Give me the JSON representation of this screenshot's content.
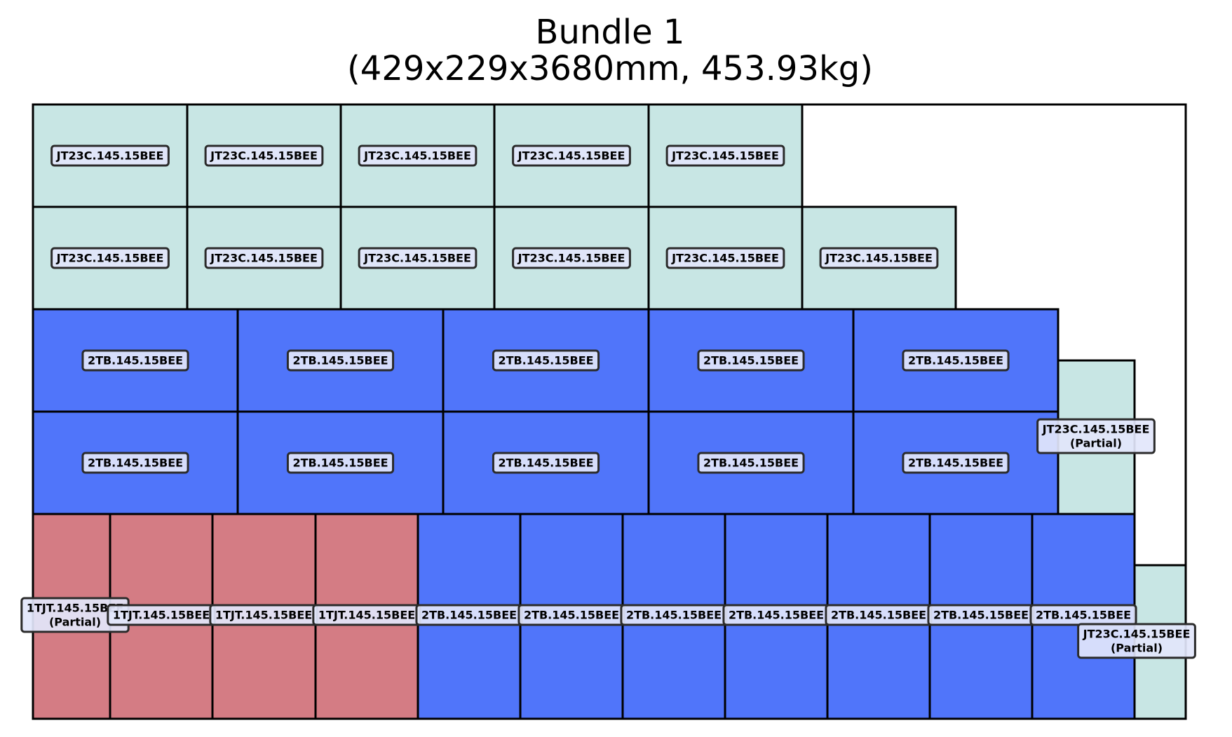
{
  "title": {
    "line1": "Bundle 1",
    "line2": "(429x229x3680mm, 453.93kg)"
  },
  "legend_colors": {
    "JT23C.145.15BEE": "#c8e6e4",
    "2TB.145.15BEE": "#5075fa",
    "1TJT.145.15BEE": "#d47c84"
  },
  "label_box": {
    "fill": "#e2e6fb",
    "stroke": "#2b2b2b"
  },
  "rows": [
    {
      "name": "row-top",
      "pieces": [
        {
          "label": "JT23C.145.15BEE"
        },
        {
          "label": "JT23C.145.15BEE"
        },
        {
          "label": "JT23C.145.15BEE"
        },
        {
          "label": "JT23C.145.15BEE"
        },
        {
          "label": "JT23C.145.15BEE"
        }
      ]
    },
    {
      "name": "row-2",
      "pieces": [
        {
          "label": "JT23C.145.15BEE"
        },
        {
          "label": "JT23C.145.15BEE"
        },
        {
          "label": "JT23C.145.15BEE"
        },
        {
          "label": "JT23C.145.15BEE"
        },
        {
          "label": "JT23C.145.15BEE"
        },
        {
          "label": "JT23C.145.15BEE"
        }
      ]
    },
    {
      "name": "row-3",
      "pieces": [
        {
          "label": "2TB.145.15BEE"
        },
        {
          "label": "2TB.145.15BEE"
        },
        {
          "label": "2TB.145.15BEE"
        },
        {
          "label": "2TB.145.15BEE"
        },
        {
          "label": "2TB.145.15BEE"
        }
      ]
    },
    {
      "name": "row-4",
      "pieces": [
        {
          "label": "2TB.145.15BEE"
        },
        {
          "label": "2TB.145.15BEE"
        },
        {
          "label": "2TB.145.15BEE"
        },
        {
          "label": "2TB.145.15BEE"
        },
        {
          "label": "2TB.145.15BEE"
        }
      ]
    },
    {
      "name": "row-bottom",
      "pieces": [
        {
          "label": "1TJT.145.15BEE",
          "note": "(Partial)"
        },
        {
          "label": "1TJT.145.15BEE"
        },
        {
          "label": "1TJT.145.15BEE"
        },
        {
          "label": "1TJT.145.15BEE"
        },
        {
          "label": "2TB.145.15BEE"
        },
        {
          "label": "2TB.145.15BEE"
        },
        {
          "label": "2TB.145.15BEE"
        },
        {
          "label": "2TB.145.15BEE"
        },
        {
          "label": "2TB.145.15BEE"
        },
        {
          "label": "2TB.145.15BEE"
        },
        {
          "label": "2TB.145.15BEE"
        }
      ]
    }
  ],
  "partials": [
    {
      "name": "partial-middle",
      "label": "JT23C.145.15BEE",
      "note": "(Partial)"
    },
    {
      "name": "partial-corner",
      "label": "JT23C.145.15BEE",
      "note": "(Partial)"
    }
  ]
}
